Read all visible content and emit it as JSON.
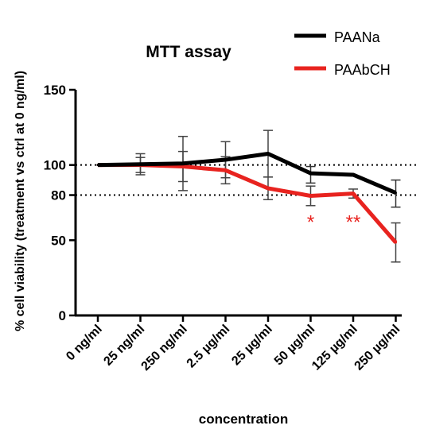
{
  "chart_data": {
    "type": "line",
    "title": "MTT assay",
    "xlabel": "concentration",
    "ylabel": "% cell viability (treatment vs ctrl at 0 ng/ml)",
    "categories": [
      "0 ng/ml",
      "25 ng/ml",
      "250 ng/ml",
      "2.5 µg/ml",
      "25 µg/ml",
      "50 µg/ml",
      "125 µg/ml",
      "250 µg/ml"
    ],
    "ylim": [
      0,
      150
    ],
    "yticks": [
      0,
      50,
      80,
      100,
      150
    ],
    "reference_lines": [
      100,
      80
    ],
    "legend_position": "top-right",
    "series": [
      {
        "name": "PAANa",
        "color": "#000000",
        "values": [
          100,
          100.5,
          101,
          103.5,
          107.5,
          94.5,
          93.5,
          81.5
        ],
        "errors": [
          0,
          7,
          18,
          12,
          15.5,
          0,
          0,
          0
        ]
      },
      {
        "name": "PAAbCH",
        "color": "#e8231f",
        "values": [
          100,
          100,
          99,
          96.5,
          84.5,
          79.5,
          81,
          48.5
        ],
        "errors": [
          0,
          5,
          10,
          9,
          0,
          6.5,
          3,
          13
        ]
      }
    ],
    "error_bars_extra": [
      {
        "series_index": 0,
        "category_index": 5,
        "low": 88,
        "high": 99
      },
      {
        "series_index": 0,
        "category_index": 6,
        "low": 93.5,
        "high": 93.5
      },
      {
        "series_index": 0,
        "category_index": 7,
        "low": 72,
        "high": 90
      },
      {
        "series_index": 1,
        "category_index": 4,
        "low": 77,
        "high": 92
      }
    ],
    "annotations": [
      {
        "category_index": 5,
        "text": "*",
        "y": 63
      },
      {
        "category_index": 6,
        "text": "**",
        "y": 63
      }
    ]
  }
}
